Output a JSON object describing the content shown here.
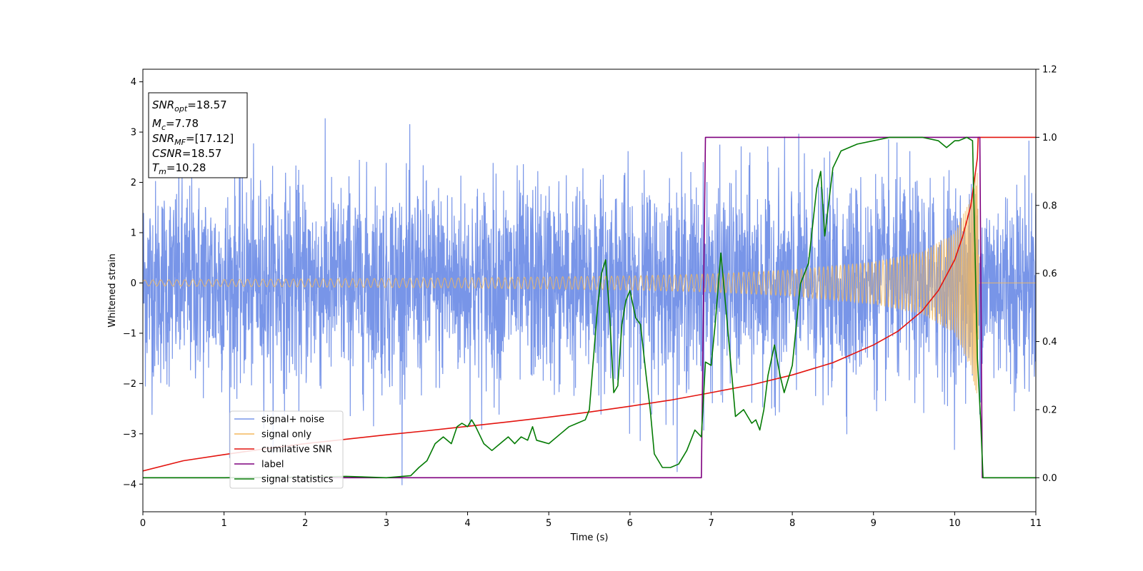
{
  "chart_data": {
    "type": "line",
    "xlabel": "Time (s)",
    "ylabel": "Whitened strain",
    "xlim": [
      0,
      11
    ],
    "ylim": [
      -4.55,
      4.25
    ],
    "y2lim": [
      -0.1,
      1.2
    ],
    "xticks": [
      0,
      1,
      2,
      3,
      4,
      5,
      6,
      7,
      8,
      9,
      10,
      11
    ],
    "yticks": [
      -4,
      -3,
      -2,
      -1,
      0,
      1,
      2,
      3,
      4
    ],
    "y2ticks": [
      "0.0",
      "0.2",
      "0.4",
      "0.6",
      "0.8",
      "1.0",
      "1.2"
    ],
    "grid": false,
    "legend_position": "lower-left",
    "annotation": {
      "lines": [
        {
          "name": "SNR",
          "sub": "opt",
          "value": "=18.57"
        },
        {
          "name": "M",
          "sub": "c",
          "value": "=7.78"
        },
        {
          "name": "SNR",
          "sub": "MF",
          "value": "=[17.12]"
        },
        {
          "name": "CSNR",
          "sub": "",
          "value": "=18.57"
        },
        {
          "name": "T",
          "sub": "m",
          "value": "=10.28"
        }
      ]
    },
    "series": [
      {
        "name": "signal+ noise",
        "color": "#7895e8",
        "axis": "left",
        "kind": "noise",
        "envelope_sigma": 1.0
      },
      {
        "name": "signal only",
        "color": "#f3b85d",
        "axis": "left",
        "kind": "chirp",
        "amplitude_points": [
          [
            0,
            0.06
          ],
          [
            2,
            0.08
          ],
          [
            4,
            0.1
          ],
          [
            6,
            0.14
          ],
          [
            7,
            0.18
          ],
          [
            8,
            0.26
          ],
          [
            9,
            0.42
          ],
          [
            9.6,
            0.62
          ],
          [
            10,
            1.0
          ],
          [
            10.2,
            1.7
          ],
          [
            10.28,
            2.5
          ],
          [
            10.3,
            0
          ]
        ]
      },
      {
        "name": "cumilative SNR",
        "color": "#e3140f",
        "axis": "right",
        "x": [
          0,
          0.5,
          1,
          1.5,
          2,
          2.5,
          3,
          3.5,
          4,
          4.5,
          5,
          5.5,
          6,
          6.5,
          7,
          7.5,
          8,
          8.5,
          9,
          9.3,
          9.6,
          9.8,
          10,
          10.1,
          10.2,
          10.28,
          10.29,
          11
        ],
        "y": [
          0.02,
          0.05,
          0.068,
          0.085,
          0.1,
          0.113,
          0.126,
          0.138,
          0.151,
          0.164,
          0.178,
          0.193,
          0.21,
          0.228,
          0.25,
          0.273,
          0.302,
          0.338,
          0.39,
          0.43,
          0.49,
          0.55,
          0.64,
          0.71,
          0.8,
          0.94,
          1.0,
          1.0
        ]
      },
      {
        "name": "label",
        "color": "#7f007f",
        "axis": "right",
        "x": [
          0,
          6.88,
          6.93,
          10.31,
          10.34,
          11
        ],
        "y": [
          0.0,
          0.0,
          1.0,
          1.0,
          0.0,
          0.0
        ]
      },
      {
        "name": "signal statistics",
        "color": "#047b04",
        "axis": "right",
        "x": [
          0,
          1,
          2,
          2.5,
          3,
          3.3,
          3.4,
          3.5,
          3.6,
          3.7,
          3.8,
          3.87,
          3.93,
          4.0,
          4.05,
          4.1,
          4.2,
          4.3,
          4.4,
          4.5,
          4.58,
          4.66,
          4.74,
          4.8,
          4.85,
          5.0,
          5.15,
          5.25,
          5.35,
          5.45,
          5.5,
          5.55,
          5.6,
          5.65,
          5.7,
          5.75,
          5.8,
          5.85,
          5.9,
          5.95,
          6.0,
          6.07,
          6.13,
          6.2,
          6.25,
          6.3,
          6.4,
          6.5,
          6.6,
          6.7,
          6.8,
          6.88,
          6.93,
          7.0,
          7.05,
          7.12,
          7.2,
          7.3,
          7.4,
          7.5,
          7.55,
          7.6,
          7.65,
          7.7,
          7.78,
          7.85,
          7.9,
          8.0,
          8.1,
          8.2,
          8.3,
          8.35,
          8.4,
          8.5,
          8.6,
          8.8,
          9.0,
          9.2,
          9.4,
          9.6,
          9.8,
          9.9,
          10.0,
          10.05,
          10.15,
          10.22,
          10.28,
          10.32,
          10.35,
          10.4,
          11
        ],
        "y": [
          0.0,
          0.0,
          0.002,
          0.004,
          0.0,
          0.006,
          0.03,
          0.05,
          0.1,
          0.12,
          0.1,
          0.15,
          0.16,
          0.15,
          0.17,
          0.15,
          0.1,
          0.08,
          0.1,
          0.12,
          0.1,
          0.12,
          0.11,
          0.15,
          0.11,
          0.1,
          0.13,
          0.15,
          0.16,
          0.17,
          0.2,
          0.35,
          0.5,
          0.6,
          0.64,
          0.48,
          0.25,
          0.27,
          0.45,
          0.52,
          0.55,
          0.47,
          0.45,
          0.3,
          0.2,
          0.07,
          0.03,
          0.03,
          0.04,
          0.08,
          0.14,
          0.12,
          0.34,
          0.33,
          0.45,
          0.66,
          0.45,
          0.18,
          0.2,
          0.16,
          0.17,
          0.14,
          0.2,
          0.3,
          0.39,
          0.3,
          0.25,
          0.33,
          0.57,
          0.63,
          0.85,
          0.9,
          0.71,
          0.91,
          0.96,
          0.98,
          0.99,
          1.0,
          1.0,
          1.0,
          0.99,
          0.97,
          0.99,
          0.99,
          1.0,
          0.99,
          0.35,
          0.17,
          0.0,
          0.0,
          0.0
        ]
      }
    ]
  }
}
